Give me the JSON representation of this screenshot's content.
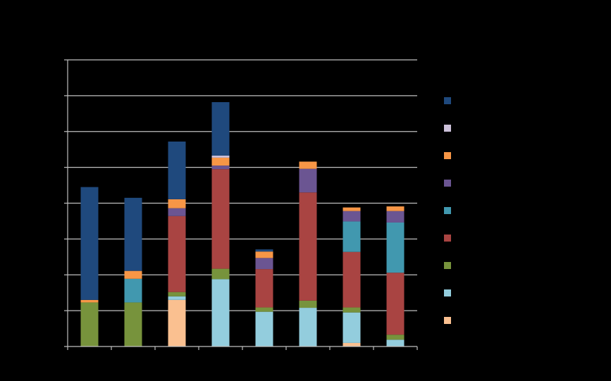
{
  "chart_data": {
    "type": "bar",
    "stacked": true,
    "title": "",
    "xlabel": "",
    "ylabel": "",
    "categories": [
      "",
      "",
      "",
      "",
      "",
      "",
      "",
      ""
    ],
    "ylim": [
      0,
      8
    ],
    "grid": true,
    "legend_position": "right",
    "background": "#000000",
    "gridline_color": "#bfbfbf",
    "series": [
      {
        "color": "#fac090",
        "values": [
          0,
          0,
          1.3,
          0,
          0,
          0,
          0.1,
          0
        ]
      },
      {
        "color": "#93cddd",
        "values": [
          0,
          0,
          0.1,
          1.88,
          0.97,
          1.08,
          0.85,
          0.19
        ]
      },
      {
        "color": "#77933c",
        "values": [
          1.23,
          1.23,
          0.12,
          0.29,
          0.12,
          0.2,
          0.14,
          0.14
        ]
      },
      {
        "color": "#a94442",
        "values": [
          0,
          0,
          2.12,
          2.78,
          1.07,
          3.02,
          1.55,
          1.73
        ]
      },
      {
        "color": "#4198af",
        "values": [
          0,
          0.66,
          0,
          0,
          0,
          0,
          0.85,
          1.4
        ]
      },
      {
        "color": "#6b5592",
        "values": [
          0,
          0,
          0.22,
          0.1,
          0.31,
          0.66,
          0.29,
          0.32
        ]
      },
      {
        "color": "#f79646",
        "values": [
          0.07,
          0.22,
          0.25,
          0.22,
          0.18,
          0.2,
          0.1,
          0.13
        ]
      },
      {
        "color": "#ccc1da",
        "values": [
          0,
          0,
          0,
          0.06,
          0,
          0,
          0,
          0
        ]
      },
      {
        "color": "#1f497d",
        "values": [
          3.15,
          2.04,
          1.61,
          1.49,
          0.06,
          0,
          0,
          0
        ]
      }
    ]
  }
}
